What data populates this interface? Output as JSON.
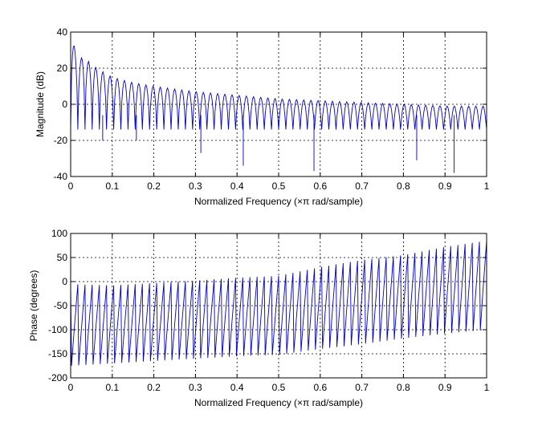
{
  "chart_data": [
    {
      "type": "line",
      "title": "",
      "xlabel": "Normalized Frequency  (×π rad/sample)",
      "ylabel": "Magnitude (dB)",
      "xlim": [
        0,
        1
      ],
      "ylim": [
        -40,
        40
      ],
      "xticks": [
        0,
        0.1,
        0.2,
        0.3,
        0.4,
        0.5,
        0.6,
        0.7,
        0.8,
        0.9,
        1
      ],
      "xtick_labels": [
        "0",
        "0.1",
        "0.2",
        "0.3",
        "0.4",
        "0.5",
        "0.6",
        "0.7",
        "0.8",
        "0.9",
        "1"
      ],
      "yticks": [
        -40,
        -20,
        0,
        20,
        40
      ],
      "ytick_labels": [
        "-40",
        "-20",
        "0",
        "20",
        "40"
      ],
      "grid": true,
      "series_color": "#0000cc",
      "lobe_count": 58,
      "series": [
        {
          "name": "",
          "x": [
            0,
            0.01,
            0.02,
            0.03,
            0.05,
            0.07,
            0.1,
            0.15,
            0.2,
            0.3,
            0.4,
            0.5,
            0.6,
            0.7,
            0.8,
            0.9,
            1
          ],
          "y": [
            40,
            31,
            24,
            27,
            22,
            19,
            15,
            12,
            10,
            7,
            5,
            3,
            2,
            1,
            0,
            -1,
            -1
          ]
        }
      ],
      "nulls": [
        {
          "x": 0.077,
          "y": -20
        },
        {
          "x": 0.158,
          "y": -20
        },
        {
          "x": 0.313,
          "y": -27
        },
        {
          "x": 0.415,
          "y": -34
        },
        {
          "x": 0.585,
          "y": -37
        },
        {
          "x": 0.832,
          "y": -31
        },
        {
          "x": 0.922,
          "y": -38
        }
      ]
    },
    {
      "type": "line",
      "title": "",
      "xlabel": "Normalized Frequency  (×π rad/sample)",
      "ylabel": "Phase (degrees)",
      "xlim": [
        0,
        1
      ],
      "ylim": [
        -200,
        100
      ],
      "xticks": [
        0,
        0.1,
        0.2,
        0.3,
        0.4,
        0.5,
        0.6,
        0.7,
        0.8,
        0.9,
        1
      ],
      "xtick_labels": [
        "0",
        "0.1",
        "0.2",
        "0.3",
        "0.4",
        "0.5",
        "0.6",
        "0.7",
        "0.8",
        "0.9",
        "1"
      ],
      "yticks": [
        -200,
        -150,
        -100,
        -50,
        0,
        50,
        100
      ],
      "ytick_labels": [
        "-200",
        "-150",
        "-100",
        "-50",
        "0",
        "50",
        "100"
      ],
      "grid": true,
      "series_color": "#0000cc",
      "cycle_count": 58,
      "series": [
        {
          "name": "",
          "x": [
            0,
            0.1,
            0.2,
            0.3,
            0.4,
            0.5,
            0.6,
            0.7,
            0.8,
            0.9,
            1
          ],
          "y_max": [
            -5,
            -8,
            -3,
            2,
            8,
            12,
            30,
            45,
            55,
            72,
            85
          ],
          "y_min": [
            -175,
            -170,
            -165,
            -160,
            -155,
            -152,
            -140,
            -130,
            -118,
            -108,
            -100
          ]
        }
      ]
    }
  ]
}
